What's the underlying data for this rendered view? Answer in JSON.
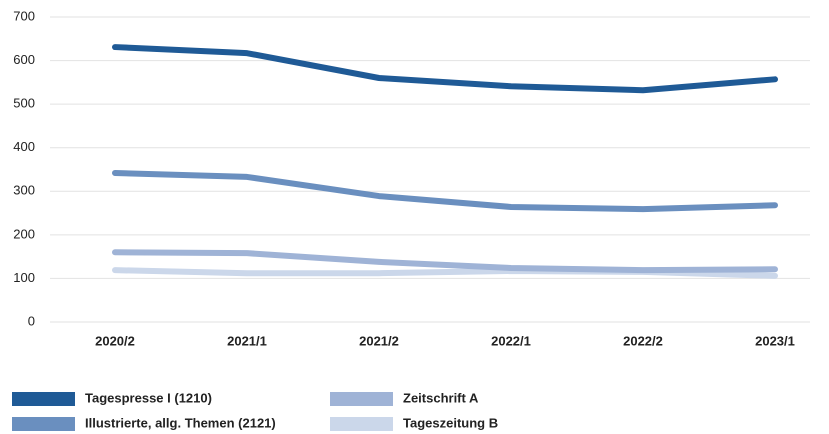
{
  "chart_data": {
    "type": "line",
    "categories": [
      "2020/2",
      "2021/1",
      "2021/2",
      "2022/1",
      "2022/2",
      "2023/1"
    ],
    "series": [
      {
        "name": "Tagespresse I (1210)",
        "color": "#1f5a96",
        "values": [
          631,
          617,
          560,
          541,
          532,
          557
        ]
      },
      {
        "name": "Illustrierte, allg. Themen (2121)",
        "color": "#6a8fbf",
        "values": [
          342,
          333,
          289,
          264,
          259,
          268
        ]
      },
      {
        "name": "Zeitschrift A",
        "color": "#9fb3d6",
        "values": [
          160,
          158,
          138,
          124,
          119,
          121
        ]
      },
      {
        "name": "Tageszeitung B",
        "color": "#cbd7ea",
        "values": [
          119,
          112,
          112,
          117,
          115,
          106
        ]
      }
    ],
    "ylim": [
      0,
      700
    ],
    "yticks": [
      0,
      100,
      200,
      300,
      400,
      500,
      600,
      700
    ],
    "grid": true
  }
}
